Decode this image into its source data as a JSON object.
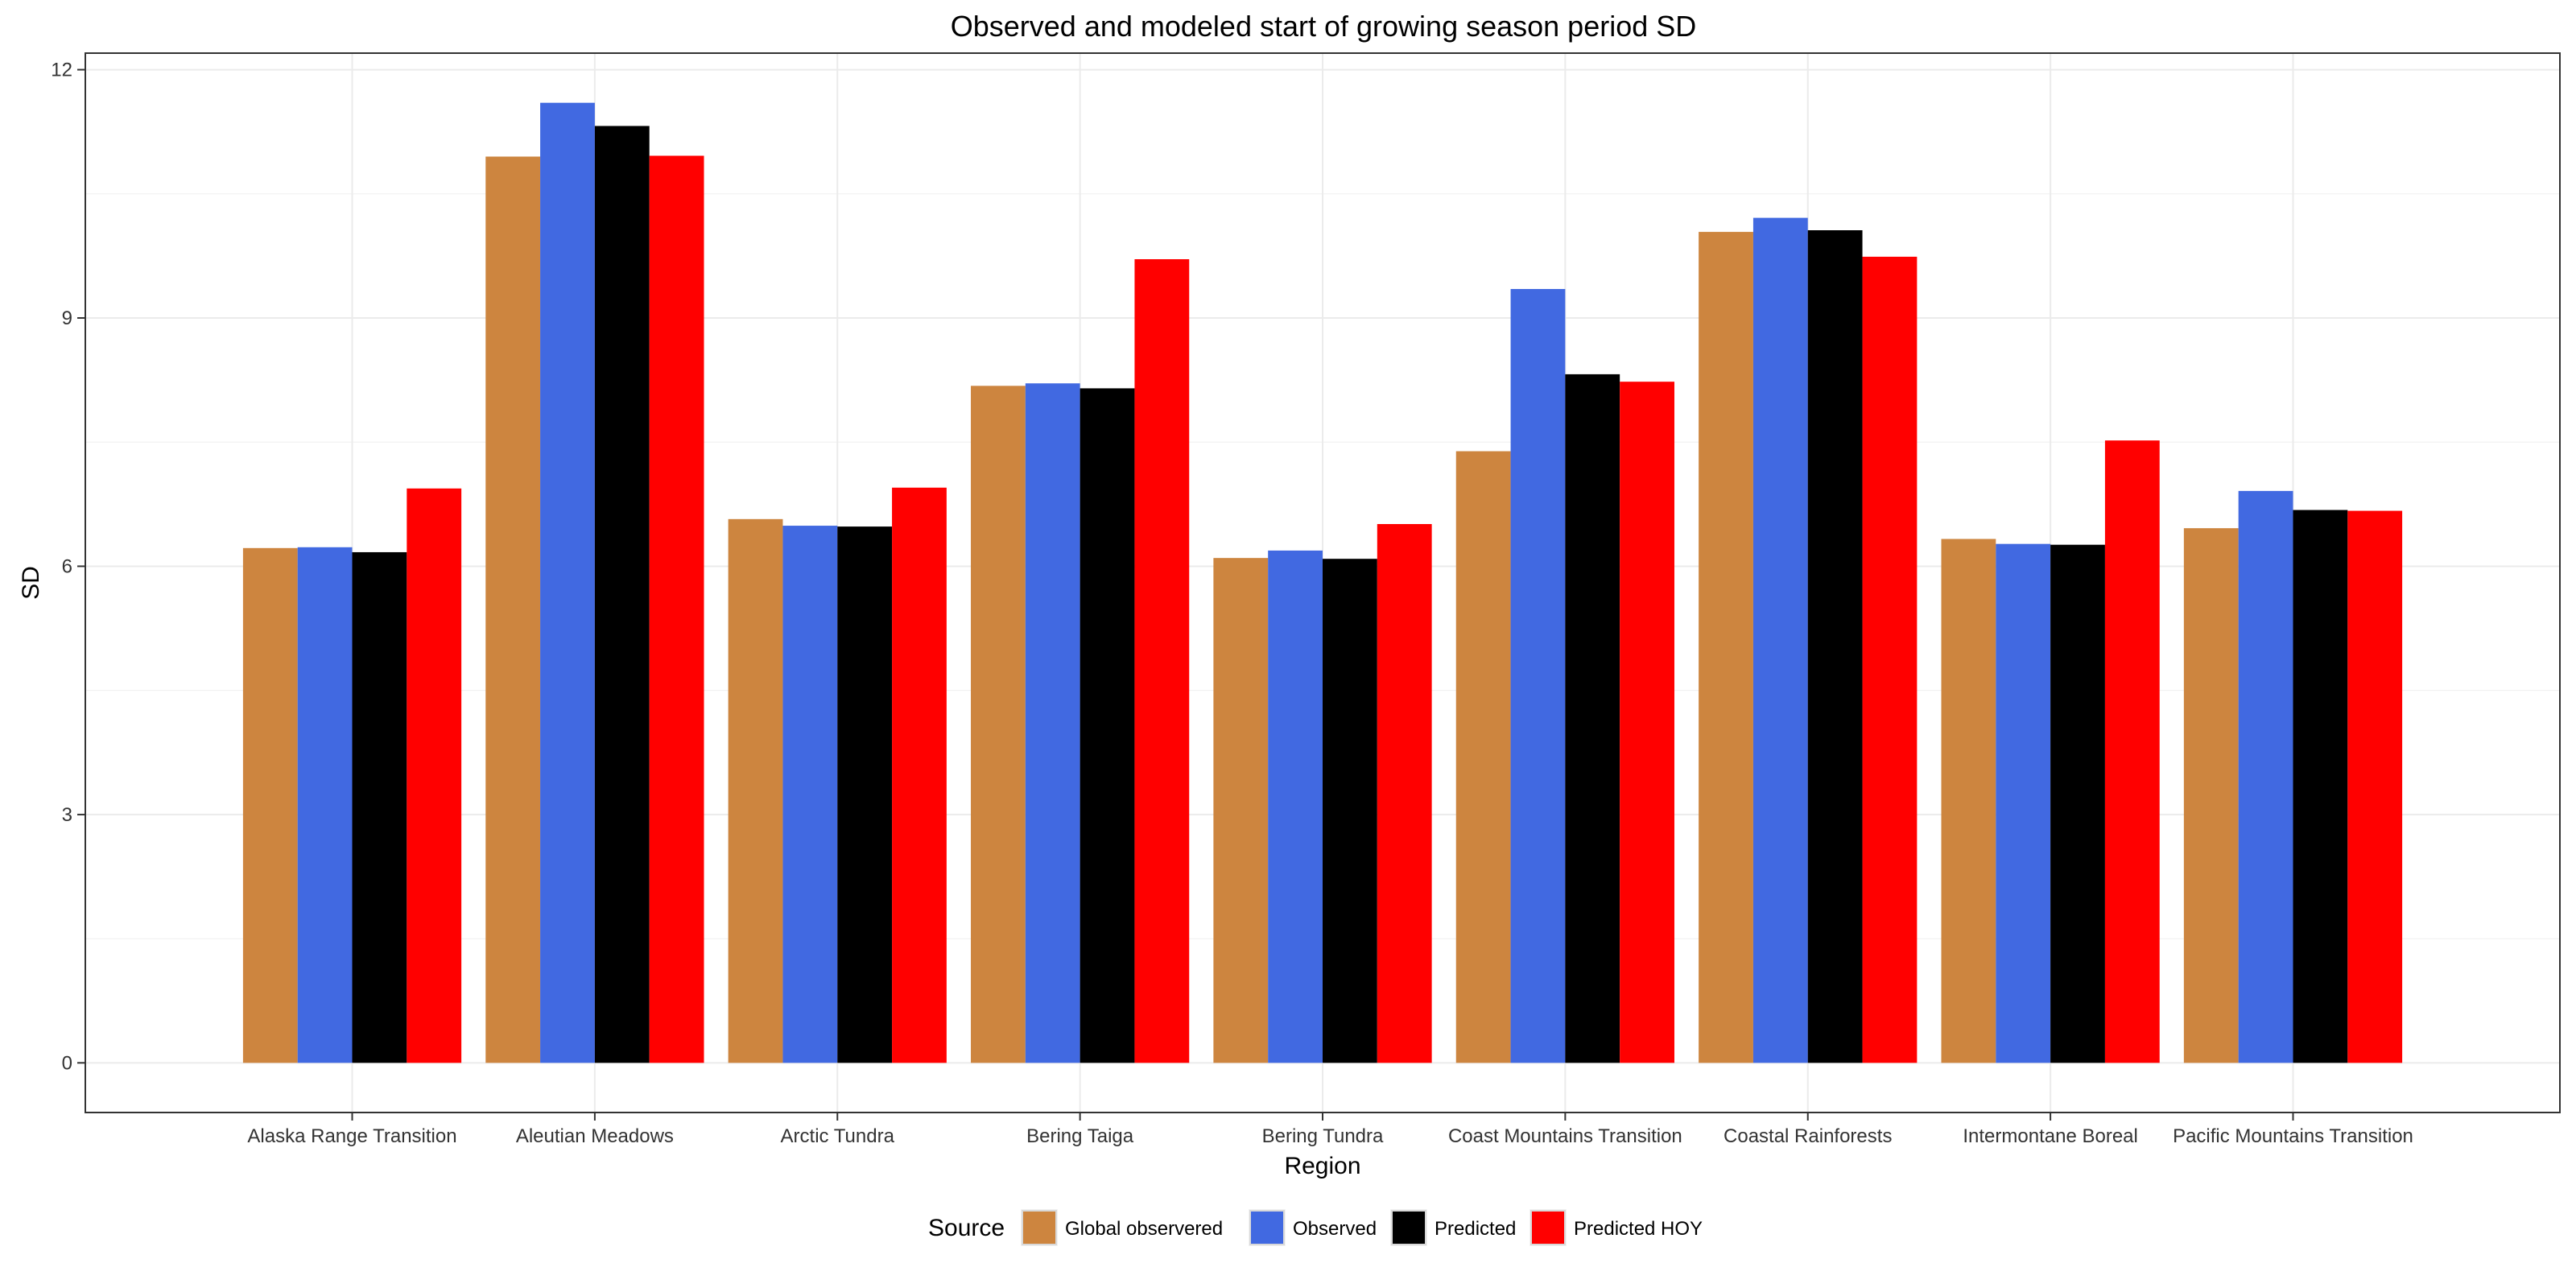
{
  "chart_data": {
    "type": "bar",
    "title": "Observed and modeled start of growing season period SD",
    "xlabel": "Region",
    "ylabel": "SD",
    "ylim": [
      -0.6,
      12.2
    ],
    "yticks": [
      0,
      3,
      6,
      9,
      12
    ],
    "grid": true,
    "legend_placement": "bottom",
    "legend_title": "Source",
    "categories": [
      "Alaska Range Transition",
      "Aleutian Meadows",
      "Arctic Tundra",
      "Bering Taiga",
      "Bering Tundra",
      "Coast Mountains Transition",
      "Coastal Rainforests",
      "Intermontane Boreal",
      "Pacific Mountains Transition"
    ],
    "series": [
      {
        "name": "Global observered",
        "color": "#CD853F",
        "values": [
          6.22,
          10.95,
          6.57,
          8.18,
          6.1,
          7.39,
          10.04,
          6.33,
          6.46
        ]
      },
      {
        "name": "Observed",
        "color": "#4169E1",
        "values": [
          6.23,
          11.6,
          6.49,
          8.21,
          6.19,
          9.35,
          10.21,
          6.27,
          6.91
        ]
      },
      {
        "name": "Predicted",
        "color": "#000000",
        "values": [
          6.17,
          11.32,
          6.48,
          8.15,
          6.09,
          8.32,
          10.06,
          6.26,
          6.68
        ]
      },
      {
        "name": "Predicted HOY",
        "color": "#FF0000",
        "values": [
          6.94,
          10.96,
          6.95,
          9.71,
          6.51,
          8.23,
          9.74,
          7.52,
          6.67
        ]
      }
    ]
  }
}
